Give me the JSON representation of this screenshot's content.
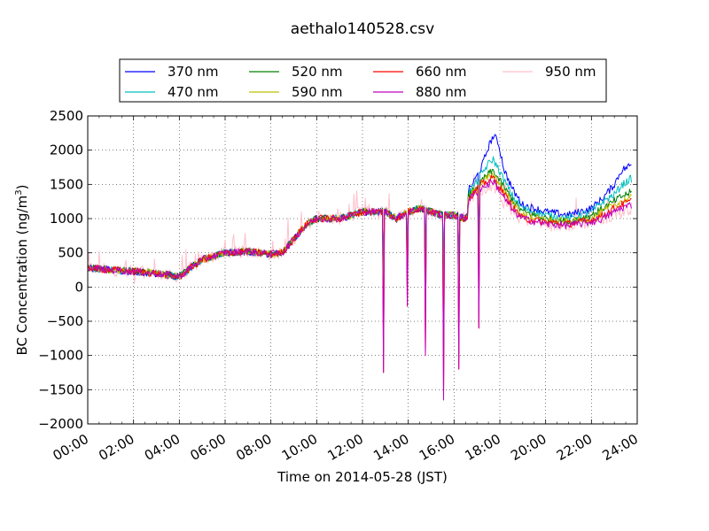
{
  "chart_data": {
    "type": "line",
    "title": "aethalo140528.csv",
    "xlabel": "Time on 2014-05-28 (JST)",
    "ylabel": "BC Concentration (ng/m",
    "ylabel_sup": "3",
    "ylabel_end": ")",
    "xlim": [
      0,
      24
    ],
    "ylim": [
      -2000,
      2500
    ],
    "grid": true,
    "grid_style": "dotted",
    "legend_position": "top-center (above plot)",
    "x_ticks": [
      0,
      2,
      4,
      6,
      8,
      10,
      12,
      14,
      16,
      18,
      20,
      22,
      24
    ],
    "x_tick_labels": [
      "00:00",
      "02:00",
      "04:00",
      "06:00",
      "08:00",
      "10:00",
      "12:00",
      "14:00",
      "16:00",
      "18:00",
      "20:00",
      "22:00",
      "24:00"
    ],
    "y_ticks": [
      2500,
      2000,
      1500,
      1000,
      500,
      0,
      -500,
      -1000,
      -1500,
      -2000
    ],
    "y_tick_labels": [
      "2500",
      "2000",
      "1500",
      "1000",
      "500",
      "0",
      "−500",
      "−1000",
      "−1500",
      "−2000"
    ],
    "base_profile": {
      "x": [
        0,
        1,
        2,
        3,
        4,
        4.5,
        5,
        6,
        7,
        8,
        8.5,
        9,
        9.5,
        10,
        11,
        12,
        12.5,
        13,
        13.5,
        14,
        14.5,
        15,
        15.5,
        16,
        16.5,
        17,
        17.3,
        17.6,
        18,
        18.5,
        19,
        20,
        21,
        22,
        23,
        23.7
      ],
      "y": [
        280,
        250,
        230,
        200,
        150,
        280,
        400,
        500,
        520,
        480,
        500,
        700,
        900,
        1000,
        1000,
        1100,
        1100,
        1100,
        1000,
        1100,
        1150,
        1100,
        1050,
        1050,
        1000,
        1300,
        1400,
        1450,
        1400,
        1200,
        1050,
        950,
        950,
        950,
        1050,
        1150
      ]
    },
    "dips": [
      {
        "x": 12.92,
        "y": -1250
      },
      {
        "x": 13.95,
        "y": -280
      },
      {
        "x": 14.75,
        "y": -1000
      },
      {
        "x": 15.55,
        "y": -1650
      },
      {
        "x": 16.2,
        "y": -1200
      },
      {
        "x": 17.1,
        "y": -600
      }
    ],
    "series": [
      {
        "name": "370 nm",
        "color": "#0000ff",
        "x": [
          0,
          4,
          8,
          10,
          12,
          14,
          16,
          16.8,
          17.2,
          17.5,
          17.7,
          17.9,
          18.2,
          18.6,
          19,
          20,
          21,
          22,
          22.5,
          23,
          23.3,
          23.7
        ],
        "y": [
          250,
          200,
          500,
          950,
          1050,
          1100,
          1100,
          1500,
          1750,
          2050,
          2200,
          2150,
          1700,
          1400,
          1200,
          1100,
          1050,
          1150,
          1300,
          1500,
          1700,
          1780
        ]
      },
      {
        "name": "470 nm",
        "color": "#00bfbf",
        "x": [
          0,
          4,
          8,
          10,
          12,
          14,
          16,
          16.8,
          17.2,
          17.5,
          17.7,
          17.9,
          18.2,
          18.6,
          19,
          20,
          21,
          22,
          22.5,
          23,
          23.3,
          23.7
        ],
        "y": [
          250,
          200,
          500,
          950,
          1050,
          1100,
          1100,
          1450,
          1650,
          1800,
          1870,
          1750,
          1550,
          1300,
          1150,
          1050,
          1000,
          1100,
          1250,
          1350,
          1480,
          1580
        ]
      },
      {
        "name": "520 nm",
        "color": "#008000",
        "x": [
          0,
          4,
          8,
          10,
          12,
          14,
          16,
          16.8,
          17.2,
          17.5,
          17.7,
          17.9,
          18.2,
          18.6,
          19,
          20,
          21,
          22,
          22.5,
          23,
          23.3,
          23.7
        ],
        "y": [
          250,
          200,
          480,
          950,
          1050,
          1100,
          1050,
          1400,
          1550,
          1650,
          1700,
          1600,
          1450,
          1250,
          1100,
          1000,
          950,
          1050,
          1150,
          1250,
          1320,
          1380
        ]
      },
      {
        "name": "590 nm",
        "color": "#bfbf00",
        "x": [
          0,
          4,
          8,
          10,
          12,
          14,
          16,
          16.8,
          17.2,
          17.5,
          17.7,
          17.9,
          18.2,
          18.6,
          19,
          20,
          21,
          22,
          22.5,
          23,
          23.3,
          23.7
        ],
        "y": [
          250,
          200,
          480,
          950,
          1050,
          1100,
          1050,
          1380,
          1520,
          1600,
          1650,
          1550,
          1400,
          1200,
          1050,
          980,
          950,
          1000,
          1100,
          1200,
          1250,
          1300
        ]
      },
      {
        "name": "660 nm",
        "color": "#ff0000",
        "x": [
          0,
          4,
          8,
          10,
          12,
          14,
          16,
          16.8,
          17.2,
          17.5,
          17.7,
          17.9,
          18.2,
          18.6,
          19,
          20,
          21,
          22,
          22.5,
          23,
          23.3,
          23.7
        ],
        "y": [
          260,
          200,
          480,
          950,
          1050,
          1100,
          1050,
          1350,
          1500,
          1550,
          1600,
          1500,
          1350,
          1150,
          1000,
          950,
          920,
          980,
          1050,
          1150,
          1200,
          1250
        ]
      },
      {
        "name": "880 nm",
        "color": "#bf00bf",
        "x": [
          0,
          4,
          8,
          10,
          12,
          14,
          16,
          16.8,
          17.2,
          17.5,
          17.7,
          17.9,
          18.2,
          18.6,
          19,
          20,
          21,
          22,
          22.5,
          23,
          23.3,
          23.7
        ],
        "y": [
          260,
          200,
          480,
          950,
          1050,
          1100,
          1050,
          1330,
          1450,
          1500,
          1550,
          1450,
          1300,
          1100,
          1000,
          920,
          900,
          950,
          1000,
          1100,
          1150,
          1200
        ]
      },
      {
        "name": "950 nm",
        "color": "#ffc0cb",
        "x": [
          0,
          4,
          8,
          10,
          12,
          14,
          16,
          16.8,
          17.2,
          17.5,
          17.7,
          17.9,
          18.2,
          18.6,
          19,
          20,
          21,
          22,
          22.5,
          23,
          23.3,
          23.7
        ],
        "y": [
          260,
          200,
          480,
          950,
          1050,
          1100,
          1050,
          1300,
          1420,
          1450,
          1500,
          1400,
          1250,
          1100,
          1000,
          900,
          900,
          950,
          1000,
          1050,
          1100,
          1150
        ]
      }
    ]
  }
}
